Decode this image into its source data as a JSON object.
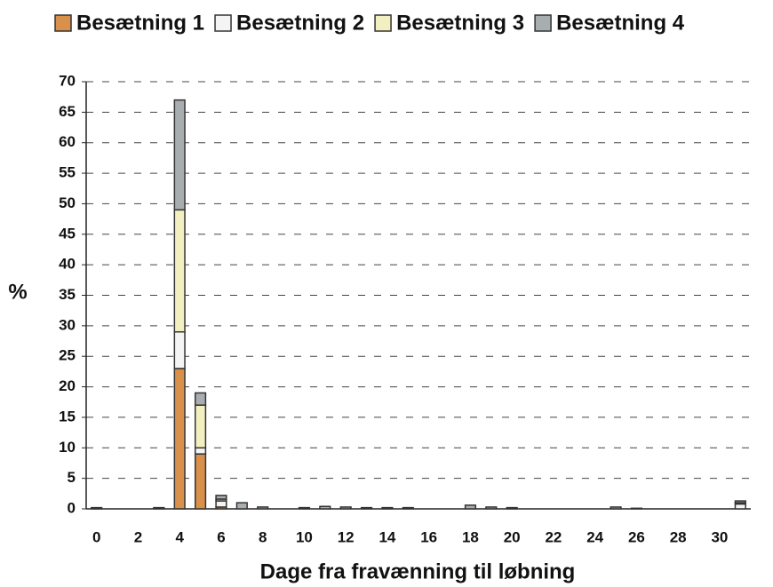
{
  "chart_data": {
    "type": "bar",
    "stacked": true,
    "x_label": "Dage fra fravænning til løbning",
    "y_label": "%",
    "categories": [
      0,
      null,
      2,
      null,
      4,
      null,
      6,
      null,
      8,
      null,
      10,
      null,
      12,
      null,
      14,
      null,
      16,
      null,
      18,
      null,
      20,
      null,
      22,
      null,
      24,
      null,
      26,
      null,
      28,
      null,
      30,
      null
    ],
    "series": [
      {
        "name": "Besætning 1",
        "color": "#d9904a",
        "values": [
          0,
          0,
          0,
          0,
          23,
          9,
          0.3,
          0,
          0,
          0,
          0,
          0,
          0,
          0,
          0,
          0,
          0,
          0,
          0,
          0,
          0,
          0,
          0,
          0,
          0,
          0,
          0,
          0,
          0,
          0,
          0,
          0
        ]
      },
      {
        "name": "Besætning 2",
        "color": "#f4f4f4",
        "values": [
          0,
          0,
          0,
          0,
          6,
          1,
          1,
          0,
          0,
          0,
          0,
          0,
          0,
          0,
          0,
          0,
          0,
          0,
          0,
          0,
          0,
          0,
          0,
          0,
          0,
          0,
          0,
          0,
          0,
          0,
          0,
          0.8
        ]
      },
      {
        "name": "Besætning 3",
        "color": "#f2f0c0",
        "values": [
          0,
          0,
          0,
          0,
          20,
          7,
          0.3,
          0,
          0,
          0,
          0,
          0,
          0,
          0,
          0,
          0,
          0,
          0,
          0,
          0,
          0,
          0,
          0,
          0,
          0,
          0,
          0,
          0,
          0,
          0,
          0,
          0.2
        ]
      },
      {
        "name": "Besætning 4",
        "color": "#a8adb0",
        "values": [
          0.2,
          0,
          0,
          0.2,
          18,
          2,
          0.6,
          1,
          0.3,
          0,
          0.2,
          0.4,
          0.3,
          0.2,
          0.2,
          0.2,
          0,
          0,
          0.6,
          0.3,
          0.2,
          0,
          0,
          0,
          0,
          0.3,
          0.1,
          0,
          0,
          0,
          0,
          0.3
        ]
      }
    ],
    "ylim": [
      0,
      70
    ],
    "yticks": [
      0,
      5,
      10,
      15,
      20,
      25,
      30,
      35,
      40,
      45,
      50,
      55,
      60,
      65,
      70
    ],
    "grid": true,
    "legend": "top"
  }
}
